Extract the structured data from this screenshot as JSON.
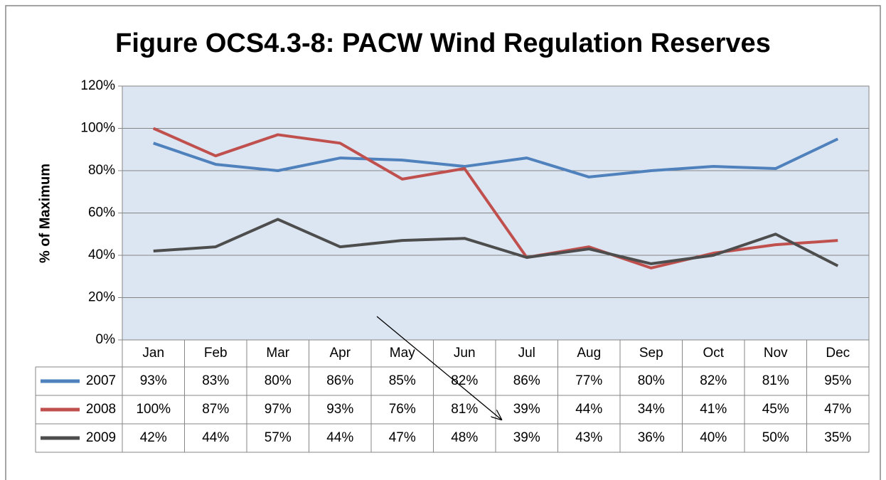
{
  "chart_data": {
    "type": "line",
    "title": "Figure OCS4.3-8:  PACW Wind Regulation Reserves",
    "y_label": "% of Maximum",
    "categories": [
      "Jan",
      "Feb",
      "Mar",
      "Apr",
      "May",
      "Jun",
      "Jul",
      "Aug",
      "Sep",
      "Oct",
      "Nov",
      "Dec"
    ],
    "series": [
      {
        "name": "2007",
        "color": "#4f81bd",
        "values": [
          93,
          83,
          80,
          86,
          85,
          82,
          86,
          77,
          80,
          82,
          81,
          95
        ],
        "value_labels": [
          "93%",
          "83%",
          "80%",
          "86%",
          "85%",
          "82%",
          "86%",
          "77%",
          "80%",
          "82%",
          "81%",
          "95%"
        ]
      },
      {
        "name": "2008",
        "color": "#c0504d",
        "values": [
          100,
          87,
          97,
          93,
          76,
          81,
          39,
          44,
          34,
          41,
          45,
          47
        ],
        "value_labels": [
          "100%",
          "87%",
          "97%",
          "93%",
          "76%",
          "81%",
          "39%",
          "44%",
          "34%",
          "41%",
          "45%",
          "47%"
        ]
      },
      {
        "name": "2009",
        "color": "#4d4d4d",
        "values": [
          42,
          44,
          57,
          44,
          47,
          48,
          39,
          43,
          36,
          40,
          50,
          35
        ],
        "value_labels": [
          "42%",
          "44%",
          "57%",
          "44%",
          "47%",
          "48%",
          "39%",
          "43%",
          "36%",
          "40%",
          "50%",
          "35%"
        ]
      }
    ],
    "ylim": [
      0,
      120
    ],
    "yticks": [
      {
        "value": 0,
        "label": "0%"
      },
      {
        "value": 20,
        "label": "20%"
      },
      {
        "value": 40,
        "label": "40%"
      },
      {
        "value": 60,
        "label": "60%"
      },
      {
        "value": 80,
        "label": "80%"
      },
      {
        "value": 100,
        "label": "100%"
      },
      {
        "value": 120,
        "label": "120%"
      }
    ],
    "grid": true,
    "plot_background": "#dce6f2"
  }
}
